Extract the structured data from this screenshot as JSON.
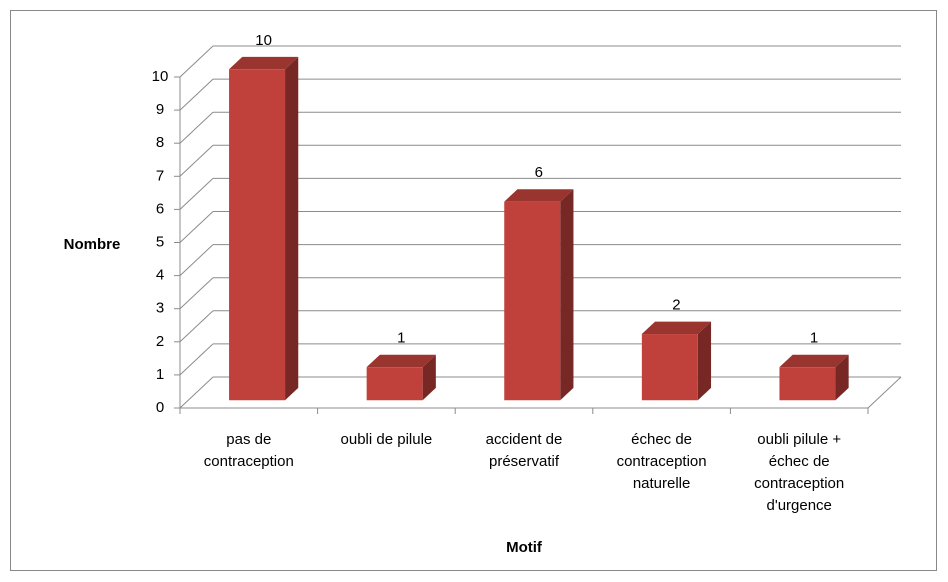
{
  "chart_data": {
    "type": "bar3d",
    "y_axis_label": "Nombre",
    "x_axis_label": "Motif",
    "categories": [
      "pas de contraception",
      "oubli de pilule",
      "accident de préservatif",
      "échec de contraception naturelle",
      "oubli pilule + échec de contraception d'urgence"
    ],
    "values": [
      10,
      1,
      6,
      2,
      1
    ],
    "color": "#c0413b",
    "ylim": [
      0,
      10
    ],
    "yticks": [
      0,
      1,
      2,
      3,
      4,
      5,
      6,
      7,
      8,
      9,
      10
    ],
    "grid": true
  }
}
